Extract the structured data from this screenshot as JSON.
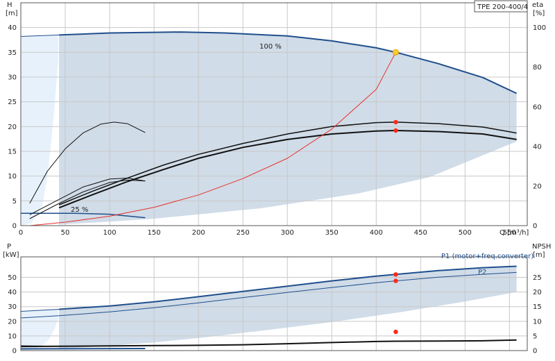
{
  "colors": {
    "envelope": "#d0dce8",
    "envelope_light": "#e6f1fb",
    "curve_blue": "#1f4e8c",
    "curve_black": "#111111",
    "system_curve": "#e8302a",
    "duty_point": "#ff2a1a",
    "duty_point_main": "#ffcc33"
  },
  "model_label": "TPE 200-400/4",
  "chart_data": [
    {
      "type": "line",
      "name": "head-efficiency",
      "title": "",
      "xlabel": "Q [m³/h]",
      "ylabel": "H [m]",
      "ylabel_unit": "[m]",
      "ylabel_name": "H",
      "y2label_name": "eta",
      "y2label_unit": "[%]",
      "xlim": [
        0,
        570
      ],
      "ylim": [
        0,
        45
      ],
      "y2lim": [
        0,
        112.5
      ],
      "xticks": [
        0,
        50,
        100,
        150,
        200,
        250,
        300,
        350,
        400,
        450,
        500,
        550
      ],
      "yticks": [
        0,
        5,
        10,
        15,
        20,
        25,
        30,
        35,
        40
      ],
      "y2ticks": [
        0,
        20,
        40,
        60,
        80,
        100
      ],
      "grid": true,
      "annotations": [
        {
          "text": "100 %",
          "x": 300,
          "y": 38.8
        },
        {
          "text": "25 %",
          "x": 60,
          "y": 3.0
        }
      ],
      "series": [
        {
          "role": "envelope_light",
          "points": [
            [
              0,
              38.2
            ],
            [
              42,
              38.4
            ],
            [
              42,
              33
            ],
            [
              36,
              20
            ],
            [
              30,
              10
            ],
            [
              24,
              4
            ],
            [
              12,
              0.5
            ],
            [
              0,
              0
            ]
          ]
        },
        {
          "role": "envelope",
          "points": [
            [
              43,
              38.5
            ],
            [
              100,
              38.9
            ],
            [
              180,
              39.1
            ],
            [
              230,
              38.9
            ],
            [
              300,
              38.3
            ],
            [
              350,
              37.3
            ],
            [
              400,
              35.9
            ],
            [
              422,
              35.0
            ],
            [
              470,
              32.7
            ],
            [
              520,
              29.9
            ],
            [
              558,
              26.7
            ],
            [
              558,
              17.0
            ],
            [
              460,
              9.8
            ],
            [
              380,
              6.5
            ],
            [
              270,
              3.5
            ],
            [
              150,
              1.4
            ],
            [
              100,
              0.8
            ],
            [
              60,
              0.4
            ],
            [
              43,
              0.2
            ]
          ]
        },
        {
          "role": "head_100",
          "color": "blue",
          "width": 2,
          "points": [
            [
              43,
              38.5
            ],
            [
              100,
              38.9
            ],
            [
              180,
              39.1
            ],
            [
              230,
              38.9
            ],
            [
              300,
              38.3
            ],
            [
              350,
              37.3
            ],
            [
              400,
              35.9
            ],
            [
              422,
              35.0
            ],
            [
              470,
              32.7
            ],
            [
              520,
              29.9
            ],
            [
              558,
              26.7
            ]
          ]
        },
        {
          "role": "head_left",
          "color": "blue",
          "width": 1,
          "points": [
            [
              0,
              38.2
            ],
            [
              43,
              38.5
            ]
          ]
        },
        {
          "role": "head_25",
          "color": "blue",
          "width": 1.5,
          "points": [
            [
              0,
              2.5
            ],
            [
              60,
              2.5
            ],
            [
              100,
              2.3
            ],
            [
              140,
              1.6
            ]
          ]
        },
        {
          "role": "eta_upper",
          "color": "black",
          "width": 1.5,
          "points": [
            [
              43,
              4.2
            ],
            [
              80,
              6.9
            ],
            [
              120,
              9.6
            ],
            [
              160,
              12.2
            ],
            [
              200,
              14.4
            ],
            [
              250,
              16.6
            ],
            [
              300,
              18.5
            ],
            [
              350,
              20.0
            ],
            [
              400,
              20.8
            ],
            [
              422,
              20.9
            ],
            [
              470,
              20.6
            ],
            [
              520,
              19.9
            ],
            [
              558,
              18.7
            ]
          ]
        },
        {
          "role": "eta_lower",
          "color": "black",
          "width": 2,
          "points": [
            [
              43,
              3.6
            ],
            [
              80,
              6.2
            ],
            [
              120,
              8.9
            ],
            [
              160,
              11.3
            ],
            [
              200,
              13.6
            ],
            [
              250,
              15.8
            ],
            [
              300,
              17.4
            ],
            [
              350,
              18.5
            ],
            [
              400,
              19.1
            ],
            [
              422,
              19.2
            ],
            [
              470,
              19.0
            ],
            [
              520,
              18.5
            ],
            [
              558,
              17.4
            ]
          ]
        },
        {
          "role": "eta_small_a",
          "color": "black",
          "width": 1,
          "points": [
            [
              10,
              4.5
            ],
            [
              30,
              11
            ],
            [
              50,
              15.5
            ],
            [
              70,
              18.7
            ],
            [
              90,
              20.5
            ],
            [
              105,
              20.9
            ],
            [
              120,
              20.6
            ],
            [
              140,
              18.8
            ]
          ]
        },
        {
          "role": "eta_small_b",
          "color": "black",
          "width": 1,
          "points": [
            [
              10,
              2.2
            ],
            [
              40,
              5.0
            ],
            [
              70,
              7.8
            ],
            [
              100,
              9.4
            ],
            [
              120,
              9.6
            ],
            [
              140,
              9.0
            ]
          ]
        },
        {
          "role": "eta_small_c",
          "color": "black",
          "width": 1,
          "points": [
            [
              10,
              1.4
            ],
            [
              40,
              4.2
            ],
            [
              70,
              6.8
            ],
            [
              100,
              8.7
            ],
            [
              120,
              9.2
            ],
            [
              140,
              9.0
            ]
          ]
        },
        {
          "role": "system_curve",
          "color": "red",
          "width": 1,
          "points": [
            [
              10,
              0
            ],
            [
              50,
              0.7
            ],
            [
              100,
              1.9
            ],
            [
              150,
              3.7
            ],
            [
              200,
              6.2
            ],
            [
              250,
              9.5
            ],
            [
              300,
              13.6
            ],
            [
              350,
              19.5
            ],
            [
              400,
              27.5
            ],
            [
              422,
              35.0
            ]
          ]
        }
      ],
      "duty_points": [
        {
          "x": 422,
          "y": 35.0,
          "kind": "main"
        },
        {
          "x": 422,
          "y": 20.9,
          "kind": "normal"
        },
        {
          "x": 422,
          "y": 19.2,
          "kind": "normal"
        }
      ]
    },
    {
      "type": "line",
      "name": "power-npsh",
      "title": "",
      "xlabel": "",
      "ylabel_name": "P",
      "ylabel_unit": "[kW]",
      "y2label_name": "NPSH",
      "y2label_unit": "[m]",
      "xlim": [
        0,
        570
      ],
      "ylim": [
        0,
        64
      ],
      "y2lim": [
        0,
        32
      ],
      "yticks": [
        0,
        10,
        20,
        30,
        40,
        50
      ],
      "y2ticks": [
        0,
        5,
        10,
        15,
        20,
        25
      ],
      "grid": true,
      "legend": [
        {
          "text": "P1 (motor+freq.converter)"
        },
        {
          "text": "P2"
        }
      ],
      "series": [
        {
          "role": "envelope_light",
          "points": [
            [
              0,
              26.8
            ],
            [
              42,
              28.2
            ],
            [
              42,
              22
            ],
            [
              38,
              15
            ],
            [
              32,
              8
            ],
            [
              24,
              3
            ],
            [
              12,
              0.5
            ],
            [
              0,
              0
            ]
          ]
        },
        {
          "role": "envelope",
          "points": [
            [
              43,
              28.2
            ],
            [
              100,
              30.5
            ],
            [
              150,
              33.3
            ],
            [
              200,
              36.8
            ],
            [
              250,
              40.4
            ],
            [
              300,
              44.0
            ],
            [
              350,
              47.6
            ],
            [
              400,
              50.8
            ],
            [
              422,
              52.0
            ],
            [
              470,
              54.6
            ],
            [
              520,
              56.6
            ],
            [
              558,
              57.6
            ],
            [
              558,
              40.0
            ],
            [
              500,
              33.5
            ],
            [
              430,
              26.5
            ],
            [
              350,
              19.5
            ],
            [
              270,
              13.5
            ],
            [
              200,
              8.6
            ],
            [
              150,
              5.6
            ],
            [
              100,
              3.3
            ],
            [
              60,
              1.8
            ],
            [
              43,
              1.3
            ]
          ]
        },
        {
          "role": "P1",
          "color": "blue",
          "width": 2,
          "points": [
            [
              43,
              28.2
            ],
            [
              100,
              30.5
            ],
            [
              150,
              33.3
            ],
            [
              200,
              36.8
            ],
            [
              250,
              40.4
            ],
            [
              300,
              44.0
            ],
            [
              350,
              47.6
            ],
            [
              400,
              50.8
            ],
            [
              422,
              52.0
            ],
            [
              470,
              54.6
            ],
            [
              520,
              56.6
            ],
            [
              558,
              57.6
            ]
          ]
        },
        {
          "role": "P1_left",
          "color": "blue",
          "width": 1,
          "points": [
            [
              0,
              26.8
            ],
            [
              43,
              28.2
            ]
          ]
        },
        {
          "role": "P2",
          "color": "blue",
          "width": 1,
          "points": [
            [
              0,
              22.3
            ],
            [
              43,
              23.8
            ],
            [
              100,
              26.4
            ],
            [
              150,
              29.3
            ],
            [
              200,
              32.6
            ],
            [
              250,
              36.2
            ],
            [
              300,
              39.7
            ],
            [
              350,
              43.1
            ],
            [
              400,
              46.3
            ],
            [
              422,
              47.6
            ],
            [
              470,
              50.1
            ],
            [
              520,
              52.1
            ],
            [
              558,
              53.4
            ]
          ]
        },
        {
          "role": "P_low",
          "color": "blue",
          "width": 2,
          "points": [
            [
              0,
              1.2
            ],
            [
              140,
              1.4
            ]
          ]
        },
        {
          "role": "NPSH",
          "color": "black",
          "width": 2,
          "points": [
            [
              0,
              2.8
            ],
            [
              43,
              3.0
            ],
            [
              100,
              3.2
            ],
            [
              150,
              3.4
            ],
            [
              200,
              3.6
            ],
            [
              250,
              4.0
            ],
            [
              300,
              4.7
            ],
            [
              350,
              5.5
            ],
            [
              400,
              6.2
            ],
            [
              422,
              6.4
            ],
            [
              470,
              6.5
            ],
            [
              520,
              6.7
            ],
            [
              558,
              7.2
            ]
          ]
        },
        {
          "role": "NPSH_left",
          "color": "black",
          "width": 1,
          "points": [
            [
              0,
              3.3
            ],
            [
              43,
              3.0
            ]
          ]
        }
      ],
      "duty_points": [
        {
          "x": 422,
          "y": 52.0,
          "kind": "normal"
        },
        {
          "x": 422,
          "y": 47.6,
          "kind": "normal"
        },
        {
          "x": 422,
          "y": 12.8,
          "kind": "normal"
        }
      ]
    }
  ]
}
